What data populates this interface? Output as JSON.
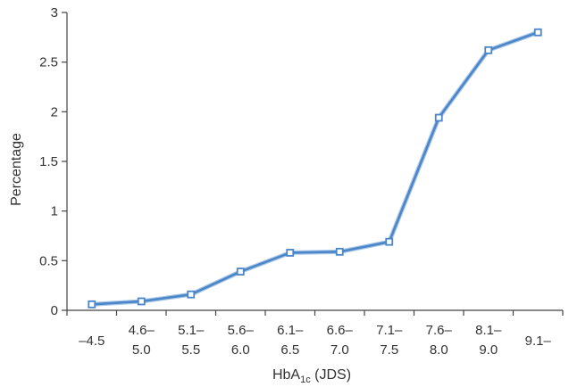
{
  "chart_data": {
    "type": "line",
    "title": "",
    "xlabel_main": "HbA",
    "xlabel_sub": "1c",
    "xlabel_suffix": " (JDS)",
    "ylabel": "Percentage",
    "categories": [
      [
        "–4.5"
      ],
      [
        "4.6–",
        "5.0"
      ],
      [
        "5.1–",
        "5.5"
      ],
      [
        "5.6–",
        "6.0"
      ],
      [
        "6.1–",
        "6.5"
      ],
      [
        "6.6–",
        "7.0"
      ],
      [
        "7.1–",
        "7.5"
      ],
      [
        "7.6–",
        "8.0"
      ],
      [
        "8.1–",
        "9.0"
      ],
      [
        "9.1–"
      ]
    ],
    "series": [
      {
        "values": [
          0.06,
          0.09,
          0.16,
          0.39,
          0.58,
          0.59,
          0.69,
          1.94,
          2.62,
          2.8
        ]
      }
    ],
    "yticks": [
      "0",
      "0.5",
      "1",
      "1.5",
      "2",
      "2.5",
      "3"
    ],
    "ylim": [
      0,
      3
    ],
    "grid": false,
    "line_color": "#4a86c8"
  }
}
